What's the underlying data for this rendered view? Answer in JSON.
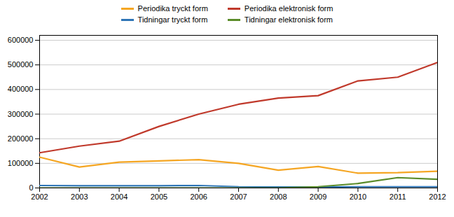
{
  "chart_data": {
    "type": "line",
    "x": [
      2002,
      2003,
      2004,
      2005,
      2006,
      2007,
      2008,
      2009,
      2010,
      2011,
      2012
    ],
    "xlim": [
      2002,
      2012
    ],
    "xticks": [
      2002,
      2003,
      2004,
      2005,
      2006,
      2007,
      2008,
      2009,
      2010,
      2011,
      2012
    ],
    "ylim": [
      0,
      620000
    ],
    "yticks": [
      0,
      100000,
      200000,
      300000,
      400000,
      500000,
      600000
    ],
    "grid": true,
    "legend": "top",
    "series": [
      {
        "name": "Periodika tryckt form",
        "color": "#F5A623",
        "values": [
          125000,
          85000,
          105000,
          110000,
          115000,
          100000,
          72000,
          87000,
          60000,
          62000,
          68000
        ]
      },
      {
        "name": "Periodika elektronisk form",
        "color": "#C0392B",
        "values": [
          143000,
          170000,
          190000,
          250000,
          300000,
          340000,
          365000,
          375000,
          435000,
          450000,
          510000
        ]
      },
      {
        "name": "Tidningar tryckt form",
        "color": "#2E75B6",
        "values": [
          10000,
          9000,
          9000,
          9000,
          10000,
          5000,
          4000,
          4000,
          5000,
          5000,
          5000
        ]
      },
      {
        "name": "Tidningar elektronisk form",
        "color": "#5B8C2A",
        "values": [
          0,
          0,
          0,
          0,
          0,
          0,
          0,
          5000,
          18000,
          42000,
          35000
        ]
      }
    ]
  }
}
